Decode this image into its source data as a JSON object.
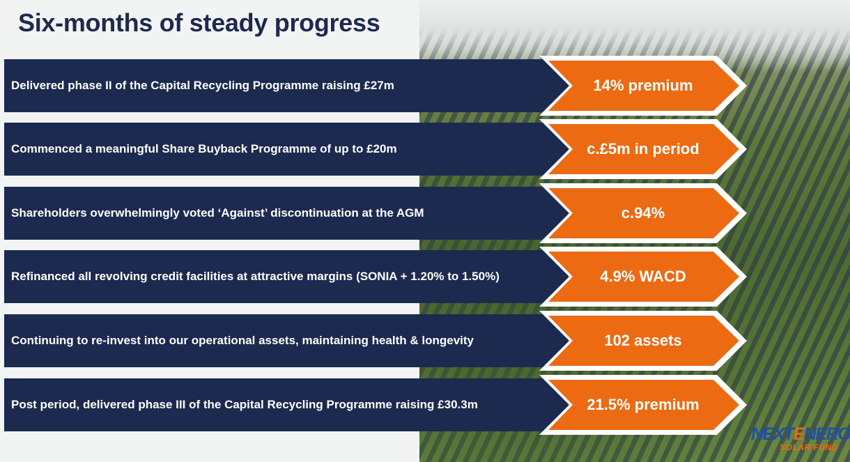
{
  "slide": {
    "title": "Six-months of steady progress"
  },
  "rows": [
    {
      "text": "Delivered phase II of the Capital Recycling Programme raising £27m",
      "badge": "14% premium"
    },
    {
      "text": "Commenced a meaningful Share Buyback Programme of up to £20m",
      "badge": "c.£5m in period"
    },
    {
      "text": "Shareholders overwhelmingly voted ‘Against’ discontinuation at the AGM",
      "badge": "c.94%"
    },
    {
      "text": " Refinanced all revolving credit facilities at attractive margins (SONIA + 1.20% to 1.50%)",
      "badge": "4.9% WACD"
    },
    {
      "text": "Continuing to re-invest into our operational assets, maintaining health & longevity",
      "badge": "102 assets"
    },
    {
      "text": "Post period, delivered phase III of the Capital Recycling Programme raising £30.3m",
      "badge": "21.5% premium"
    }
  ],
  "logo": {
    "part1": "NEXT",
    "part2": "E",
    "part3": "NERGY",
    "sub": "SOLAR FUND"
  },
  "colors": {
    "navy": "#1b2a4e",
    "orange": "#ec6a12",
    "background": "#f2f3f3"
  }
}
